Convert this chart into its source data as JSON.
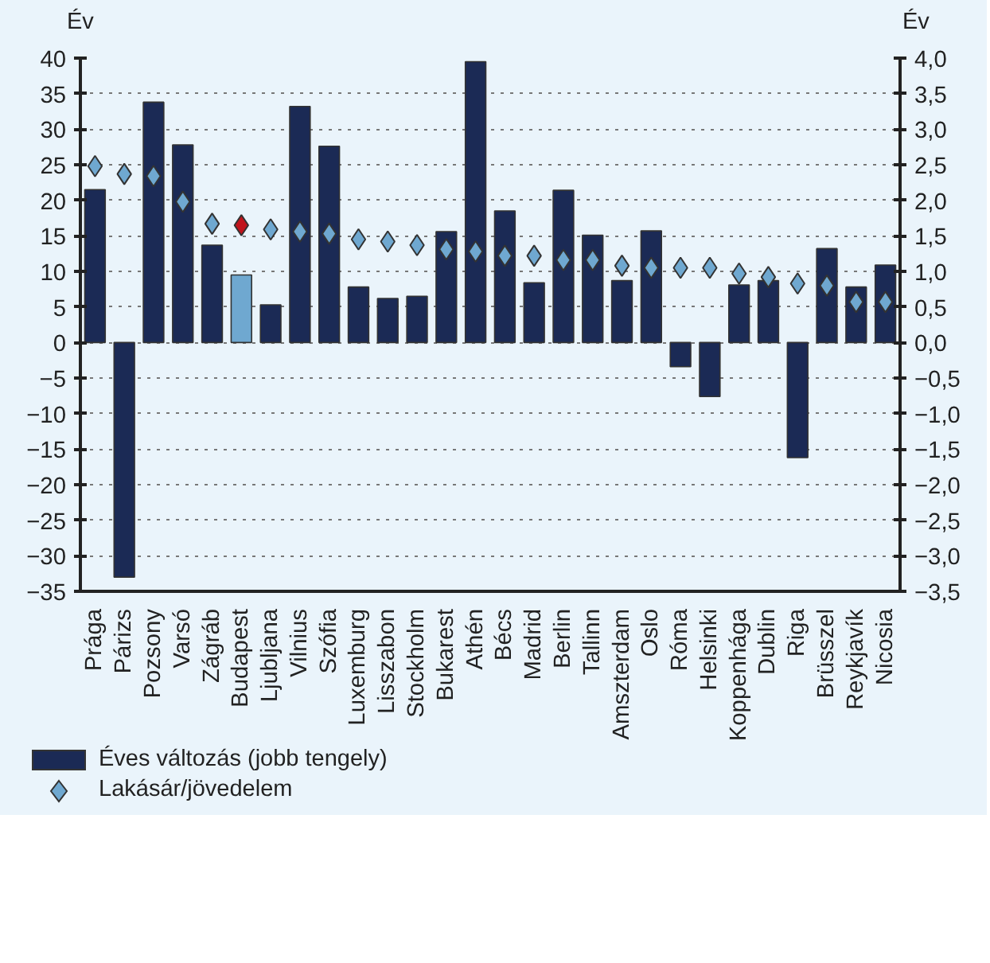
{
  "chart_data": {
    "type": "bar",
    "ylabel": "Év",
    "y2label": "Év",
    "categories": [
      "Prága",
      "Párizs",
      "Pozsony",
      "Varsó",
      "Zágráb",
      "Budapest",
      "Ljubljana",
      "Vilnius",
      "Szófia",
      "Luxemburg",
      "Lisszabon",
      "Stockholm",
      "Bukarest",
      "Athén",
      "Bécs",
      "Madrid",
      "Berlin",
      "Tallinn",
      "Amszterdam",
      "Oslo",
      "Róma",
      "Helsinki",
      "Koppenhága",
      "Dublin",
      "Riga",
      "Brüsszel",
      "Reykjavík",
      "Nicosia"
    ],
    "series": [
      {
        "name": "Éves változás (jobb tengely)",
        "type": "bar",
        "axis": "y2",
        "color": "#1b2a55",
        "colors": [
          "#1b2a55",
          "#1b2a55",
          "#1b2a55",
          "#1b2a55",
          "#1b2a55",
          "#6fa8d0",
          "#1b2a55",
          "#1b2a55",
          "#1b2a55",
          "#1b2a55",
          "#1b2a55",
          "#1b2a55",
          "#1b2a55",
          "#1b2a55",
          "#1b2a55",
          "#1b2a55",
          "#1b2a55",
          "#1b2a55",
          "#1b2a55",
          "#1b2a55",
          "#1b2a55",
          "#1b2a55",
          "#1b2a55",
          "#1b2a55",
          "#1b2a55",
          "#1b2a55",
          "#1b2a55",
          "#1b2a55"
        ],
        "values": [
          2.15,
          -3.3,
          3.38,
          2.78,
          1.37,
          0.95,
          0.53,
          3.32,
          2.76,
          0.78,
          0.62,
          0.65,
          1.56,
          3.95,
          1.85,
          0.84,
          2.14,
          1.51,
          0.87,
          1.57,
          -0.34,
          -0.76,
          0.81,
          0.87,
          -1.62,
          1.32,
          0.78,
          1.09
        ]
      },
      {
        "name": "Lakásár/jövedelem",
        "type": "scatter",
        "marker": "diamond",
        "color": "#6fa8d0",
        "colors": [
          "#6fa8d0",
          "#6fa8d0",
          "#6fa8d0",
          "#6fa8d0",
          "#6fa8d0",
          "#c0141c",
          "#6fa8d0",
          "#6fa8d0",
          "#6fa8d0",
          "#6fa8d0",
          "#6fa8d0",
          "#6fa8d0",
          "#6fa8d0",
          "#6fa8d0",
          "#6fa8d0",
          "#6fa8d0",
          "#6fa8d0",
          "#6fa8d0",
          "#6fa8d0",
          "#6fa8d0",
          "#6fa8d0",
          "#6fa8d0",
          "#6fa8d0",
          "#6fa8d0",
          "#6fa8d0",
          "#6fa8d0",
          "#6fa8d0",
          "#6fa8d0"
        ],
        "values": [
          24.8,
          23.7,
          23.4,
          19.8,
          16.7,
          16.5,
          15.9,
          15.6,
          15.3,
          14.5,
          14.2,
          13.7,
          13.1,
          12.8,
          12.2,
          12.2,
          11.6,
          11.6,
          10.8,
          10.5,
          10.5,
          10.5,
          9.7,
          9.2,
          8.3,
          8.0,
          5.7,
          5.7
        ]
      }
    ],
    "ylim": [
      -35,
      40
    ],
    "yticks": [
      {
        "value": -35,
        "label": "−35"
      },
      {
        "value": -30,
        "label": "−30"
      },
      {
        "value": -25,
        "label": "−25"
      },
      {
        "value": -20,
        "label": "−20"
      },
      {
        "value": -15,
        "label": "−15"
      },
      {
        "value": -10,
        "label": "−10"
      },
      {
        "value": -5,
        "label": "−5"
      },
      0,
      5,
      10,
      15,
      20,
      25,
      30,
      35,
      40
    ],
    "y2lim": [
      -3.5,
      4.0
    ],
    "y2ticks": [
      {
        "value": -3.5,
        "label": "−3,5"
      },
      {
        "value": -3.0,
        "label": "−3,0"
      },
      {
        "value": -2.5,
        "label": "−2,5"
      },
      {
        "value": -2.0,
        "label": "−2,0"
      },
      {
        "value": -1.5,
        "label": "−1,5"
      },
      {
        "value": -1.0,
        "label": "−1,0"
      },
      {
        "value": -0.5,
        "label": "−0,5"
      },
      {
        "value": 0,
        "label": "0,0"
      },
      {
        "value": 0.5,
        "label": "0,5"
      },
      {
        "value": 1.0,
        "label": "1,0"
      },
      {
        "value": 1.5,
        "label": "1,5"
      },
      {
        "value": 2.0,
        "label": "2,0"
      },
      {
        "value": 2.5,
        "label": "2,5"
      },
      {
        "value": 3.0,
        "label": "3,0"
      },
      {
        "value": 3.5,
        "label": "3,5"
      },
      {
        "value": 4.0,
        "label": "4,0"
      }
    ],
    "grid": "y",
    "legend": "bottom left"
  }
}
